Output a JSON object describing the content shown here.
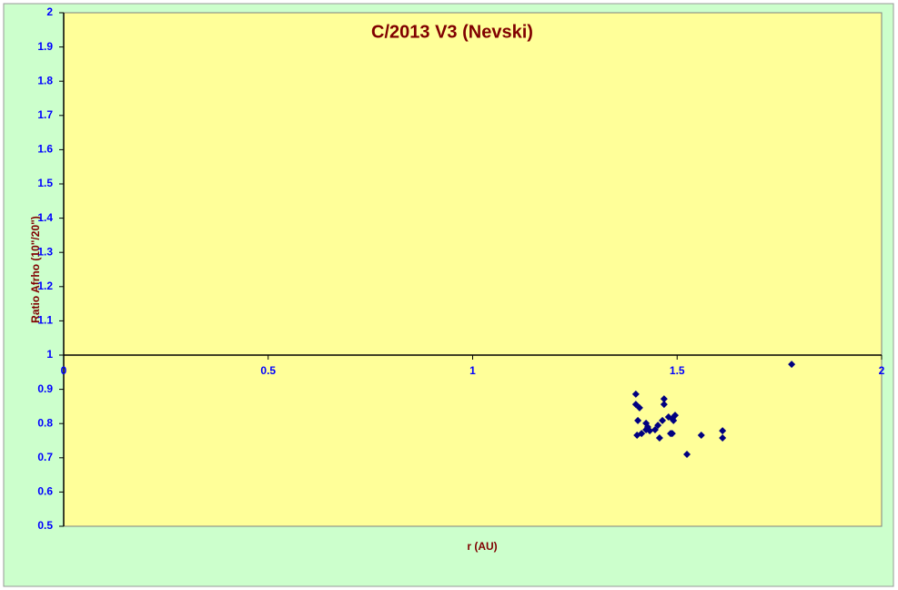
{
  "chart_data": {
    "type": "scatter",
    "title": "C/2013 V3 (Nevski)",
    "x_label": "r (AU)",
    "y_label": "Ratio Afrho (10\"/20\")",
    "x": [
      1.399,
      1.399,
      1.408,
      1.404,
      1.402,
      1.413,
      1.424,
      1.424,
      1.428,
      1.433,
      1.446,
      1.453,
      1.457,
      1.464,
      1.468,
      1.468,
      1.479,
      1.484,
      1.488,
      1.491,
      1.495,
      1.488,
      1.524,
      1.559,
      1.611,
      1.611,
      1.78
    ],
    "values": [
      0.886,
      0.856,
      0.846,
      0.809,
      0.766,
      0.771,
      0.782,
      0.801,
      0.79,
      0.779,
      0.782,
      0.795,
      0.758,
      0.809,
      0.872,
      0.856,
      0.819,
      0.771,
      0.771,
      0.809,
      0.824,
      0.814,
      0.71,
      0.766,
      0.779,
      0.758,
      0.973
    ],
    "color": "#000080",
    "xlim": [
      0,
      2
    ],
    "xticks": [
      0,
      0.5,
      1,
      1.5,
      2
    ],
    "ylim": [
      0.5,
      2
    ],
    "yticks": [
      0.5,
      0.6,
      0.7,
      0.8,
      0.9,
      1,
      1.1,
      1.2,
      1.3,
      1.4,
      1.5,
      1.6,
      1.7,
      1.8,
      1.9,
      2
    ],
    "x_axis_crossing": 1
  }
}
